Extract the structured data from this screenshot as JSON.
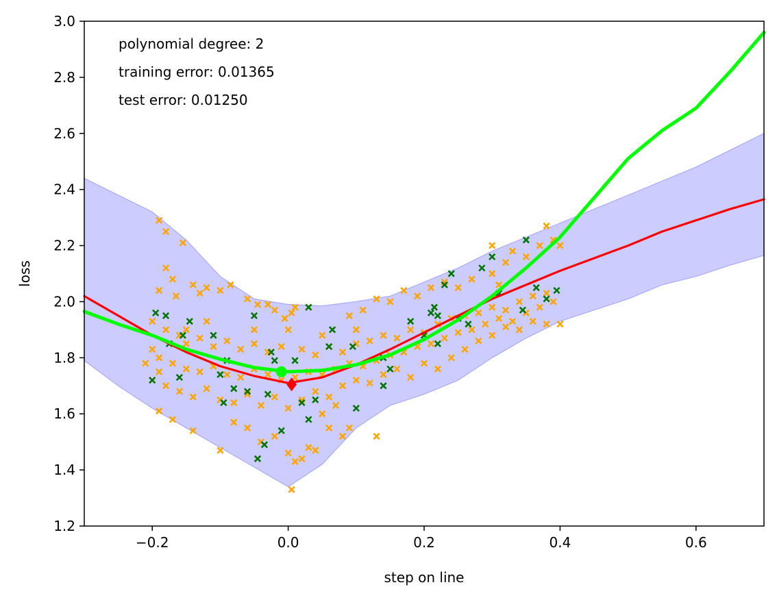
{
  "chart_data": {
    "type": "scatter",
    "title": "",
    "xlabel": "step on line",
    "ylabel": "loss",
    "xlim": [
      -0.3,
      0.7
    ],
    "ylim": [
      1.2,
      3.0
    ],
    "xticks": [
      -0.2,
      0.0,
      0.2,
      0.4,
      0.6
    ],
    "xtick_labels": [
      "−0.2",
      "0.0",
      "0.2",
      "0.4",
      "0.6"
    ],
    "yticks": [
      1.2,
      1.4,
      1.6,
      1.8,
      2.0,
      2.2,
      2.4,
      2.6,
      2.8,
      3.0
    ],
    "ytick_labels": [
      "1.2",
      "1.4",
      "1.6",
      "1.8",
      "2.0",
      "2.2",
      "2.4",
      "2.6",
      "2.8",
      "3.0"
    ],
    "grid": false,
    "annotations": [
      "polynomial degree: 2",
      "training error: 0.01365",
      "test error: 0.01250"
    ],
    "colors": {
      "training_points": "#ffa500",
      "test_points": "#007500",
      "mean_curve": "#ff0000",
      "polynomial_fit": "#00ff00",
      "band_fill": "#ccccff",
      "band_edge": "#aaaaff"
    },
    "band": {
      "x": [
        -0.3,
        -0.25,
        -0.2,
        -0.15,
        -0.1,
        -0.05,
        0.0,
        0.05,
        0.1,
        0.15,
        0.2,
        0.25,
        0.3,
        0.35,
        0.4,
        0.45,
        0.5,
        0.55,
        0.6,
        0.65,
        0.7
      ],
      "lower": [
        1.79,
        1.7,
        1.62,
        1.55,
        1.48,
        1.41,
        1.34,
        1.42,
        1.55,
        1.63,
        1.67,
        1.72,
        1.8,
        1.87,
        1.93,
        1.97,
        2.01,
        2.06,
        2.09,
        2.13,
        2.165
      ],
      "upper": [
        2.44,
        2.38,
        2.32,
        2.22,
        2.09,
        2.01,
        1.99,
        1.985,
        2.0,
        2.02,
        2.07,
        2.12,
        2.18,
        2.23,
        2.28,
        2.33,
        2.38,
        2.43,
        2.48,
        2.54,
        2.6
      ]
    },
    "series": [
      {
        "kind": "line",
        "color": "#ff0000",
        "x": [
          -0.3,
          -0.25,
          -0.2,
          -0.15,
          -0.1,
          -0.05,
          0.0,
          0.05,
          0.1,
          0.15,
          0.2,
          0.25,
          0.3,
          0.35,
          0.4,
          0.45,
          0.5,
          0.55,
          0.6,
          0.65,
          0.7
        ],
        "y": [
          2.02,
          1.95,
          1.88,
          1.82,
          1.77,
          1.735,
          1.71,
          1.73,
          1.775,
          1.83,
          1.89,
          1.95,
          2.01,
          2.06,
          2.11,
          2.155,
          2.2,
          2.25,
          2.29,
          2.33,
          2.365
        ]
      },
      {
        "kind": "line",
        "color": "#00ff00",
        "x": [
          -0.3,
          -0.25,
          -0.2,
          -0.15,
          -0.1,
          -0.05,
          0.0,
          0.05,
          0.1,
          0.15,
          0.2,
          0.25,
          0.3,
          0.35,
          0.4,
          0.45,
          0.5,
          0.55,
          0.6,
          0.65,
          0.7
        ],
        "y": [
          1.965,
          1.92,
          1.88,
          1.83,
          1.795,
          1.765,
          1.75,
          1.755,
          1.775,
          1.81,
          1.865,
          1.935,
          2.02,
          2.12,
          2.23,
          2.37,
          2.51,
          2.61,
          2.69,
          2.82,
          2.96
        ]
      }
    ],
    "markers": [
      {
        "x": 0.005,
        "y": 1.705,
        "color": "#ff0000",
        "shape": "diamond"
      },
      {
        "x": -0.01,
        "y": 1.75,
        "color": "#00ff00",
        "shape": "circle"
      }
    ],
    "scatter": {
      "training_points": [
        [
          -0.19,
          2.29
        ],
        [
          -0.18,
          2.25
        ],
        [
          -0.155,
          2.21
        ],
        [
          -0.18,
          2.12
        ],
        [
          -0.17,
          2.08
        ],
        [
          -0.19,
          2.04
        ],
        [
          -0.165,
          2.02
        ],
        [
          -0.14,
          2.06
        ],
        [
          -0.13,
          2.03
        ],
        [
          -0.12,
          2.05
        ],
        [
          -0.1,
          2.04
        ],
        [
          -0.085,
          2.06
        ],
        [
          -0.06,
          2.01
        ],
        [
          -0.045,
          1.99
        ],
        [
          -0.03,
          1.99
        ],
        [
          -0.005,
          1.94
        ],
        [
          0.01,
          1.98
        ],
        [
          0.03,
          1.98
        ],
        [
          -0.02,
          1.97
        ],
        [
          0.005,
          1.96
        ],
        [
          -0.2,
          1.93
        ],
        [
          -0.18,
          1.9
        ],
        [
          -0.16,
          1.88
        ],
        [
          -0.15,
          1.85
        ],
        [
          -0.13,
          1.87
        ],
        [
          -0.11,
          1.84
        ],
        [
          -0.09,
          1.86
        ],
        [
          -0.07,
          1.83
        ],
        [
          -0.05,
          1.85
        ],
        [
          -0.03,
          1.82
        ],
        [
          -0.01,
          1.84
        ],
        [
          0.02,
          1.83
        ],
        [
          0.04,
          1.81
        ],
        [
          0.06,
          1.84
        ],
        [
          0.08,
          1.82
        ],
        [
          0.1,
          1.85
        ],
        [
          0.12,
          1.86
        ],
        [
          0.14,
          1.88
        ],
        [
          0.16,
          1.87
        ],
        [
          0.18,
          1.9
        ],
        [
          0.2,
          1.89
        ],
        [
          0.22,
          1.92
        ],
        [
          0.24,
          1.94
        ],
        [
          0.26,
          1.95
        ],
        [
          0.28,
          1.96
        ],
        [
          0.3,
          1.98
        ],
        [
          0.32,
          1.97
        ],
        [
          0.34,
          2.0
        ],
        [
          0.36,
          2.02
        ],
        [
          0.38,
          2.03
        ],
        [
          -0.19,
          1.8
        ],
        [
          -0.17,
          1.78
        ],
        [
          -0.15,
          1.76
        ],
        [
          -0.13,
          1.75
        ],
        [
          -0.11,
          1.77
        ],
        [
          -0.09,
          1.74
        ],
        [
          -0.07,
          1.73
        ],
        [
          -0.05,
          1.76
        ],
        [
          -0.03,
          1.74
        ],
        [
          -0.01,
          1.72
        ],
        [
          0.01,
          1.73
        ],
        [
          0.03,
          1.75
        ],
        [
          0.05,
          1.74
        ],
        [
          0.07,
          1.76
        ],
        [
          0.09,
          1.78
        ],
        [
          0.11,
          1.77
        ],
        [
          0.13,
          1.79
        ],
        [
          0.15,
          1.81
        ],
        [
          0.17,
          1.82
        ],
        [
          0.19,
          1.84
        ],
        [
          0.21,
          1.85
        ],
        [
          0.23,
          1.87
        ],
        [
          0.25,
          1.89
        ],
        [
          0.27,
          1.9
        ],
        [
          0.29,
          1.92
        ],
        [
          0.31,
          1.94
        ],
        [
          0.33,
          1.93
        ],
        [
          0.35,
          1.96
        ],
        [
          0.37,
          1.98
        ],
        [
          0.39,
          2.0
        ],
        [
          -0.18,
          1.7
        ],
        [
          -0.16,
          1.68
        ],
        [
          -0.14,
          1.66
        ],
        [
          -0.12,
          1.69
        ],
        [
          -0.1,
          1.65
        ],
        [
          -0.08,
          1.64
        ],
        [
          -0.06,
          1.67
        ],
        [
          -0.04,
          1.63
        ],
        [
          -0.02,
          1.66
        ],
        [
          0.0,
          1.62
        ],
        [
          0.02,
          1.65
        ],
        [
          0.04,
          1.68
        ],
        [
          0.06,
          1.66
        ],
        [
          0.08,
          1.7
        ],
        [
          0.1,
          1.72
        ],
        [
          0.12,
          1.71
        ],
        [
          0.14,
          1.74
        ],
        [
          0.16,
          1.76
        ],
        [
          0.18,
          1.73
        ],
        [
          0.2,
          1.78
        ],
        [
          -0.19,
          1.61
        ],
        [
          -0.17,
          1.58
        ],
        [
          -0.14,
          1.54
        ],
        [
          -0.1,
          1.47
        ],
        [
          -0.08,
          1.57
        ],
        [
          -0.06,
          1.55
        ],
        [
          -0.04,
          1.5
        ],
        [
          -0.02,
          1.52
        ],
        [
          0.0,
          1.46
        ],
        [
          0.02,
          1.44
        ],
        [
          0.04,
          1.47
        ],
        [
          0.06,
          1.55
        ],
        [
          0.08,
          1.52
        ],
        [
          0.09,
          1.55
        ],
        [
          0.13,
          1.52
        ],
        [
          0.005,
          1.33
        ],
        [
          0.01,
          1.43
        ],
        [
          0.03,
          1.48
        ],
        [
          0.05,
          1.6
        ],
        [
          0.07,
          1.63
        ],
        [
          0.22,
          1.76
        ],
        [
          0.24,
          1.8
        ],
        [
          0.26,
          1.83
        ],
        [
          0.28,
          1.86
        ],
        [
          0.3,
          1.88
        ],
        [
          0.32,
          1.91
        ],
        [
          0.34,
          1.9
        ],
        [
          0.36,
          1.93
        ],
        [
          0.38,
          1.92
        ],
        [
          0.4,
          1.92
        ],
        [
          0.3,
          2.2
        ],
        [
          0.32,
          2.14
        ],
        [
          0.33,
          2.18
        ],
        [
          0.35,
          2.16
        ],
        [
          0.37,
          2.2
        ],
        [
          0.38,
          2.27
        ],
        [
          0.39,
          2.22
        ],
        [
          0.4,
          2.2
        ],
        [
          0.3,
          2.1
        ],
        [
          0.31,
          2.06
        ],
        [
          0.27,
          2.08
        ],
        [
          0.25,
          2.05
        ],
        [
          0.23,
          2.07
        ],
        [
          0.21,
          2.05
        ],
        [
          0.19,
          2.02
        ],
        [
          0.17,
          2.04
        ],
        [
          0.15,
          2.0
        ],
        [
          0.13,
          2.01
        ],
        [
          0.11,
          1.97
        ],
        [
          0.09,
          1.95
        ],
        [
          -0.2,
          1.72
        ],
        [
          -0.19,
          1.75
        ],
        [
          -0.21,
          1.78
        ],
        [
          -0.2,
          1.83
        ],
        [
          -0.15,
          1.9
        ],
        [
          -0.12,
          1.93
        ],
        [
          -0.05,
          1.9
        ],
        [
          0.0,
          1.9
        ],
        [
          0.05,
          1.88
        ],
        [
          0.1,
          1.9
        ]
      ],
      "test_points": [
        [
          -0.195,
          1.96
        ],
        [
          -0.18,
          1.95
        ],
        [
          -0.175,
          1.85
        ],
        [
          -0.155,
          1.88
        ],
        [
          -0.145,
          1.93
        ],
        [
          -0.11,
          1.88
        ],
        [
          -0.1,
          1.74
        ],
        [
          -0.09,
          1.79
        ],
        [
          -0.08,
          1.69
        ],
        [
          -0.095,
          1.64
        ],
        [
          -0.06,
          1.68
        ],
        [
          -0.05,
          1.95
        ],
        [
          -0.045,
          1.44
        ],
        [
          -0.035,
          1.49
        ],
        [
          -0.03,
          1.67
        ],
        [
          -0.025,
          1.82
        ],
        [
          -0.02,
          1.79
        ],
        [
          -0.01,
          1.54
        ],
        [
          0.01,
          1.79
        ],
        [
          0.03,
          1.58
        ],
        [
          0.03,
          1.98
        ],
        [
          0.06,
          1.84
        ],
        [
          0.065,
          1.9
        ],
        [
          0.095,
          1.84
        ],
        [
          0.14,
          1.8
        ],
        [
          0.14,
          1.7
        ],
        [
          0.15,
          1.76
        ],
        [
          0.18,
          1.93
        ],
        [
          0.2,
          1.88
        ],
        [
          0.21,
          1.96
        ],
        [
          0.215,
          1.98
        ],
        [
          0.22,
          1.95
        ],
        [
          0.23,
          2.06
        ],
        [
          0.24,
          2.1
        ],
        [
          0.25,
          1.94
        ],
        [
          0.265,
          1.92
        ],
        [
          0.285,
          2.12
        ],
        [
          0.3,
          2.16
        ],
        [
          0.31,
          2.03
        ],
        [
          0.345,
          1.97
        ],
        [
          0.35,
          2.22
        ],
        [
          0.365,
          2.05
        ],
        [
          0.38,
          2.01
        ],
        [
          0.395,
          2.04
        ],
        [
          -0.2,
          1.72
        ],
        [
          0.04,
          1.65
        ],
        [
          0.02,
          1.64
        ],
        [
          -0.16,
          1.73
        ],
        [
          0.1,
          1.62
        ],
        [
          0.22,
          1.85
        ]
      ]
    }
  }
}
